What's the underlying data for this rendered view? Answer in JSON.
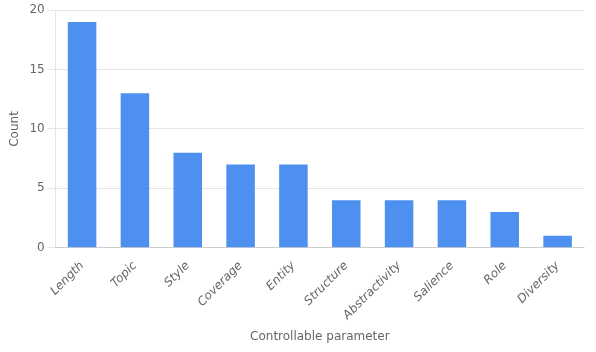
{
  "chart_data": {
    "type": "bar",
    "categories": [
      "Length",
      "Topic",
      "Style",
      "Coverage",
      "Entity",
      "Structure",
      "Abstractivity",
      "Salience",
      "Role",
      "Diversity"
    ],
    "values": [
      19,
      13,
      8,
      7,
      7,
      4,
      4,
      4,
      3,
      1
    ],
    "color": "#4d90f0",
    "xlabel": "Controllable parameter",
    "ylabel": "Count",
    "ylim": [
      0,
      20
    ],
    "yticks": [
      0,
      5,
      10,
      15,
      20
    ],
    "grid": true
  }
}
